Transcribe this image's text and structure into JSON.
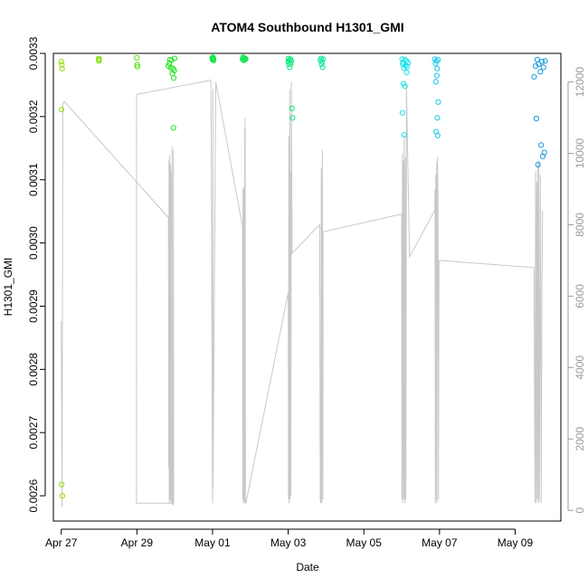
{
  "chart_data": {
    "type": "scatter",
    "title": "ATOM4 Southbound H1301_GMI",
    "xlabel": "Date",
    "ylabel": "H1301_GMI",
    "x_range": [
      "2016-04-26T19:00",
      "2016-05-10T05:00"
    ],
    "ylim": [
      0.00256,
      0.0033
    ],
    "y_ticks": [
      0.0026,
      0.0027,
      0.0028,
      0.0029,
      0.003,
      0.0031,
      0.0032,
      0.0033
    ],
    "y_tick_labels": [
      "0.0026",
      "0.0027",
      "0.0028",
      "0.0029",
      "0.0030",
      "0.0031",
      "0.0032",
      "0.0033"
    ],
    "x_ticks": [
      "2016-04-27",
      "2016-04-29",
      "2016-05-01",
      "2016-05-03",
      "2016-05-05",
      "2016-05-07",
      "2016-05-09"
    ],
    "x_tick_labels": [
      "Apr 27",
      "Apr 29",
      "May 01",
      "May 03",
      "May 05",
      "May 07",
      "May 09"
    ],
    "y2lim": [
      -300,
      12800
    ],
    "y2_ticks": [
      0,
      2000,
      4000,
      6000,
      8000,
      10000,
      12000
    ],
    "y2_tick_labels": [
      "0",
      "2000",
      "4000",
      "6000",
      "8000",
      "10000",
      "12000"
    ],
    "secondary_line_color": "#c8c8c8",
    "point_series": [
      {
        "color": "#8fe000",
        "points": [
          [
            "2016-04-27T00:00",
            0.003287
          ],
          [
            "2016-04-27T00:20",
            0.003282
          ],
          [
            "2016-04-27T00:35",
            0.003276
          ],
          [
            "2016-04-27T00:10",
            0.003211
          ],
          [
            "2016-04-27T00:15",
            0.002618
          ],
          [
            "2016-04-27T00:40",
            0.0026
          ]
        ]
      },
      {
        "color": "#7fe000",
        "points": [
          [
            "2016-04-27T23:50",
            0.003292
          ],
          [
            "2016-04-27T23:55",
            0.003288
          ],
          [
            "2016-04-28T00:00",
            0.00329
          ]
        ]
      },
      {
        "color": "#55e410",
        "points": [
          [
            "2016-04-29T00:00",
            0.003293
          ],
          [
            "2016-04-29T00:10",
            0.003282
          ],
          [
            "2016-04-29T00:20",
            0.003279
          ]
        ]
      },
      {
        "color": "#22e420",
        "points": [
          [
            "2016-04-29T20:00",
            0.00328
          ],
          [
            "2016-04-29T20:30",
            0.003284
          ],
          [
            "2016-04-29T21:00",
            0.00329
          ],
          [
            "2016-04-29T21:30",
            0.003277
          ],
          [
            "2016-04-29T22:00",
            0.003289
          ],
          [
            "2016-04-29T22:30",
            0.003268
          ],
          [
            "2016-04-29T23:00",
            0.003276
          ],
          [
            "2016-04-29T23:20",
            0.003261
          ],
          [
            "2016-04-29T23:40",
            0.003273
          ],
          [
            "2016-04-29T23:50",
            0.003292
          ],
          [
            "2016-04-29T23:10",
            0.003182
          ]
        ]
      },
      {
        "color": "#10e640",
        "points": [
          [
            "2016-04-30T23:50",
            0.003293
          ],
          [
            "2016-05-01T00:00",
            0.00329
          ],
          [
            "2016-05-01T00:10",
            0.003294
          ],
          [
            "2016-05-01T00:20",
            0.003291
          ],
          [
            "2016-05-01T00:30",
            0.003292
          ],
          [
            "2016-05-01T00:40",
            0.003289
          ]
        ]
      },
      {
        "color": "#10e650",
        "points": [
          [
            "2016-05-01T19:00",
            0.003291
          ],
          [
            "2016-05-01T19:20",
            0.003294
          ],
          [
            "2016-05-01T19:40",
            0.003289
          ],
          [
            "2016-05-01T20:00",
            0.003293
          ],
          [
            "2016-05-01T20:20",
            0.00329
          ],
          [
            "2016-05-01T20:40",
            0.003292
          ],
          [
            "2016-05-01T21:00",
            0.003291
          ]
        ]
      },
      {
        "color": "#10e680",
        "points": [
          [
            "2016-05-03T00:00",
            0.003287
          ],
          [
            "2016-05-03T00:15",
            0.003292
          ],
          [
            "2016-05-03T00:30",
            0.003283
          ],
          [
            "2016-05-03T00:45",
            0.003289
          ],
          [
            "2016-05-03T01:00",
            0.003278
          ],
          [
            "2016-05-03T01:20",
            0.003291
          ],
          [
            "2016-05-03T01:40",
            0.003284
          ],
          [
            "2016-05-03T02:00",
            0.003288
          ],
          [
            "2016-05-03T02:30",
            0.003213
          ],
          [
            "2016-05-03T02:45",
            0.003198
          ]
        ]
      },
      {
        "color": "#10e6a0",
        "points": [
          [
            "2016-05-03T20:30",
            0.003289
          ],
          [
            "2016-05-03T20:50",
            0.003292
          ],
          [
            "2016-05-03T21:10",
            0.003283
          ],
          [
            "2016-05-03T21:30",
            0.003287
          ],
          [
            "2016-05-03T21:50",
            0.003278
          ],
          [
            "2016-05-03T22:10",
            0.003291
          ]
        ]
      },
      {
        "color": "#18e2e8",
        "points": [
          [
            "2016-05-06T00:20",
            0.003291
          ],
          [
            "2016-05-06T00:40",
            0.003283
          ],
          [
            "2016-05-06T01:00",
            0.003286
          ],
          [
            "2016-05-06T01:30",
            0.003277
          ],
          [
            "2016-05-06T02:00",
            0.00329
          ],
          [
            "2016-05-06T02:30",
            0.003281
          ],
          [
            "2016-05-06T03:00",
            0.003288
          ],
          [
            "2016-05-06T03:30",
            0.003279
          ],
          [
            "2016-05-06T04:00",
            0.003285
          ],
          [
            "2016-05-06T01:10",
            0.003252
          ],
          [
            "2016-05-06T02:10",
            0.003248
          ],
          [
            "2016-05-06T03:10",
            0.00327
          ],
          [
            "2016-05-06T00:30",
            0.003206
          ],
          [
            "2016-05-06T01:40",
            0.003171
          ]
        ]
      },
      {
        "color": "#18c8ea",
        "points": [
          [
            "2016-05-06T21:00",
            0.003291
          ],
          [
            "2016-05-06T21:30",
            0.003284
          ],
          [
            "2016-05-06T22:00",
            0.003288
          ],
          [
            "2016-05-06T22:30",
            0.003276
          ],
          [
            "2016-05-06T23:00",
            0.00329
          ],
          [
            "2016-05-06T21:40",
            0.003255
          ],
          [
            "2016-05-06T22:20",
            0.003265
          ],
          [
            "2016-05-06T23:10",
            0.003223
          ],
          [
            "2016-05-06T22:40",
            0.003198
          ],
          [
            "2016-05-06T21:50",
            0.003176
          ],
          [
            "2016-05-06T22:50",
            0.00317
          ]
        ]
      },
      {
        "color": "#1a98de",
        "points": [
          [
            "2016-05-09T12:00",
            0.003263
          ],
          [
            "2016-05-09T13:00",
            0.00328
          ],
          [
            "2016-05-09T14:00",
            0.00329
          ],
          [
            "2016-05-09T15:00",
            0.003283
          ],
          [
            "2016-05-09T16:00",
            0.003271
          ],
          [
            "2016-05-09T17:00",
            0.003287
          ],
          [
            "2016-05-09T18:00",
            0.003278
          ],
          [
            "2016-05-09T19:00",
            0.003288
          ],
          [
            "2016-05-09T13:30",
            0.003197
          ],
          [
            "2016-05-09T16:30",
            0.003155
          ],
          [
            "2016-05-09T18:30",
            0.003143
          ],
          [
            "2016-05-09T17:30",
            0.003137
          ],
          [
            "2016-05-09T14:30",
            0.003124
          ]
        ]
      }
    ],
    "secondary_line": [
      [
        "2016-04-27T00:00",
        5300
      ],
      [
        "2016-04-27T00:30",
        100
      ],
      [
        "2016-04-27T01:00",
        11400
      ],
      [
        "2016-04-27T02:00",
        11450
      ],
      [
        "2016-04-29T20:00",
        8200
      ],
      [
        "2016-04-29T20:10",
        1200
      ],
      [
        "2016-04-29T20:20",
        9800
      ],
      [
        "2016-04-29T20:30",
        200
      ],
      [
        "2016-04-29T20:45",
        9950
      ],
      [
        "2016-04-29T21:00",
        300
      ],
      [
        "2016-04-29T21:15",
        9700
      ],
      [
        "2016-04-29T21:30",
        200
      ],
      [
        "2016-04-29T21:45",
        9500
      ],
      [
        "2016-04-29T22:00",
        250
      ],
      [
        "2016-04-29T22:20",
        10200
      ],
      [
        "2016-04-29T22:30",
        150
      ],
      [
        "2016-04-29T22:45",
        200
      ],
      [
        "2016-04-29T23:00",
        150
      ],
      [
        "2016-04-29T23:10",
        10100
      ],
      [
        "2016-04-29T23:20",
        200
      ],
      [
        "2016-04-28T23:40",
        200
      ],
      [
        "2016-04-28T23:50",
        11650
      ],
      [
        "2016-04-30T23:00",
        12050
      ],
      [
        "2016-05-01T00:00",
        200
      ],
      [
        "2016-05-01T00:10",
        11800
      ],
      [
        "2016-05-01T00:20",
        650
      ],
      [
        "2016-05-01T02:00",
        12000
      ],
      [
        "2016-05-01T19:00",
        7950
      ],
      [
        "2016-05-01T19:10",
        300
      ],
      [
        "2016-05-01T19:20",
        9000
      ],
      [
        "2016-05-01T19:30",
        250
      ],
      [
        "2016-05-01T19:40",
        9000
      ],
      [
        "2016-05-01T19:50",
        200
      ],
      [
        "2016-05-01T20:00",
        9050
      ],
      [
        "2016-05-01T20:10",
        300
      ],
      [
        "2016-05-01T20:20",
        10700
      ],
      [
        "2016-05-01T20:30",
        200
      ],
      [
        "2016-05-01T20:40",
        11000
      ],
      [
        "2016-05-01T20:50",
        300
      ],
      [
        "2016-05-01T21:10",
        200
      ],
      [
        "2016-05-03T00:00",
        6100
      ],
      [
        "2016-05-03T00:10",
        300
      ],
      [
        "2016-05-03T00:20",
        10500
      ],
      [
        "2016-05-03T00:30",
        200
      ],
      [
        "2016-05-03T00:40",
        8300
      ],
      [
        "2016-05-03T00:50",
        300
      ],
      [
        "2016-05-03T01:00",
        11800
      ],
      [
        "2016-05-03T01:10",
        300
      ],
      [
        "2016-05-03T01:30",
        9500
      ],
      [
        "2016-05-03T01:40",
        400
      ],
      [
        "2016-05-03T02:00",
        12000
      ],
      [
        "2016-05-03T02:30",
        7200
      ],
      [
        "2016-05-03T20:00",
        8000
      ],
      [
        "2016-05-03T20:20",
        300
      ],
      [
        "2016-05-03T20:40",
        200
      ],
      [
        "2016-05-03T21:00",
        9600
      ],
      [
        "2016-05-03T21:20",
        200
      ],
      [
        "2016-05-03T21:40",
        10100
      ],
      [
        "2016-05-03T22:00",
        300
      ],
      [
        "2016-05-03T22:10",
        7800
      ],
      [
        "2016-05-06T00:00",
        8300
      ],
      [
        "2016-05-06T00:10",
        300
      ],
      [
        "2016-05-06T00:20",
        5200
      ],
      [
        "2016-05-06T00:30",
        10000
      ],
      [
        "2016-05-06T00:40",
        200
      ],
      [
        "2016-05-06T01:00",
        9800
      ],
      [
        "2016-05-06T01:20",
        300
      ],
      [
        "2016-05-06T01:40",
        10500
      ],
      [
        "2016-05-06T02:00",
        200
      ],
      [
        "2016-05-06T02:20",
        9900
      ],
      [
        "2016-05-06T02:40",
        300
      ],
      [
        "2016-05-06T03:00",
        11900
      ],
      [
        "2016-05-06T05:00",
        7100
      ],
      [
        "2016-05-06T21:00",
        8400
      ],
      [
        "2016-05-06T21:10",
        9000
      ],
      [
        "2016-05-06T21:20",
        200
      ],
      [
        "2016-05-06T21:40",
        9400
      ],
      [
        "2016-05-06T22:00",
        300
      ],
      [
        "2016-05-06T22:10",
        9750
      ],
      [
        "2016-05-06T22:20",
        200
      ],
      [
        "2016-05-06T22:40",
        9900
      ],
      [
        "2016-05-06T23:00",
        8900
      ],
      [
        "2016-05-06T23:20",
        300
      ],
      [
        "2016-05-06T23:40",
        7000
      ],
      [
        "2016-05-09T12:00",
        6800
      ],
      [
        "2016-05-09T12:30",
        200
      ],
      [
        "2016-05-09T13:00",
        9500
      ],
      [
        "2016-05-09T13:20",
        200
      ],
      [
        "2016-05-09T13:40",
        9200
      ],
      [
        "2016-05-09T14:00",
        300
      ],
      [
        "2016-05-09T14:20",
        9700
      ],
      [
        "2016-05-09T14:40",
        200
      ],
      [
        "2016-05-09T15:00",
        9800
      ],
      [
        "2016-05-09T15:20",
        250
      ],
      [
        "2016-05-09T16:00",
        9400
      ],
      [
        "2016-05-09T16:30",
        200
      ],
      [
        "2016-05-09T17:00",
        6200
      ],
      [
        "2016-05-09T17:20",
        8400
      ]
    ]
  }
}
